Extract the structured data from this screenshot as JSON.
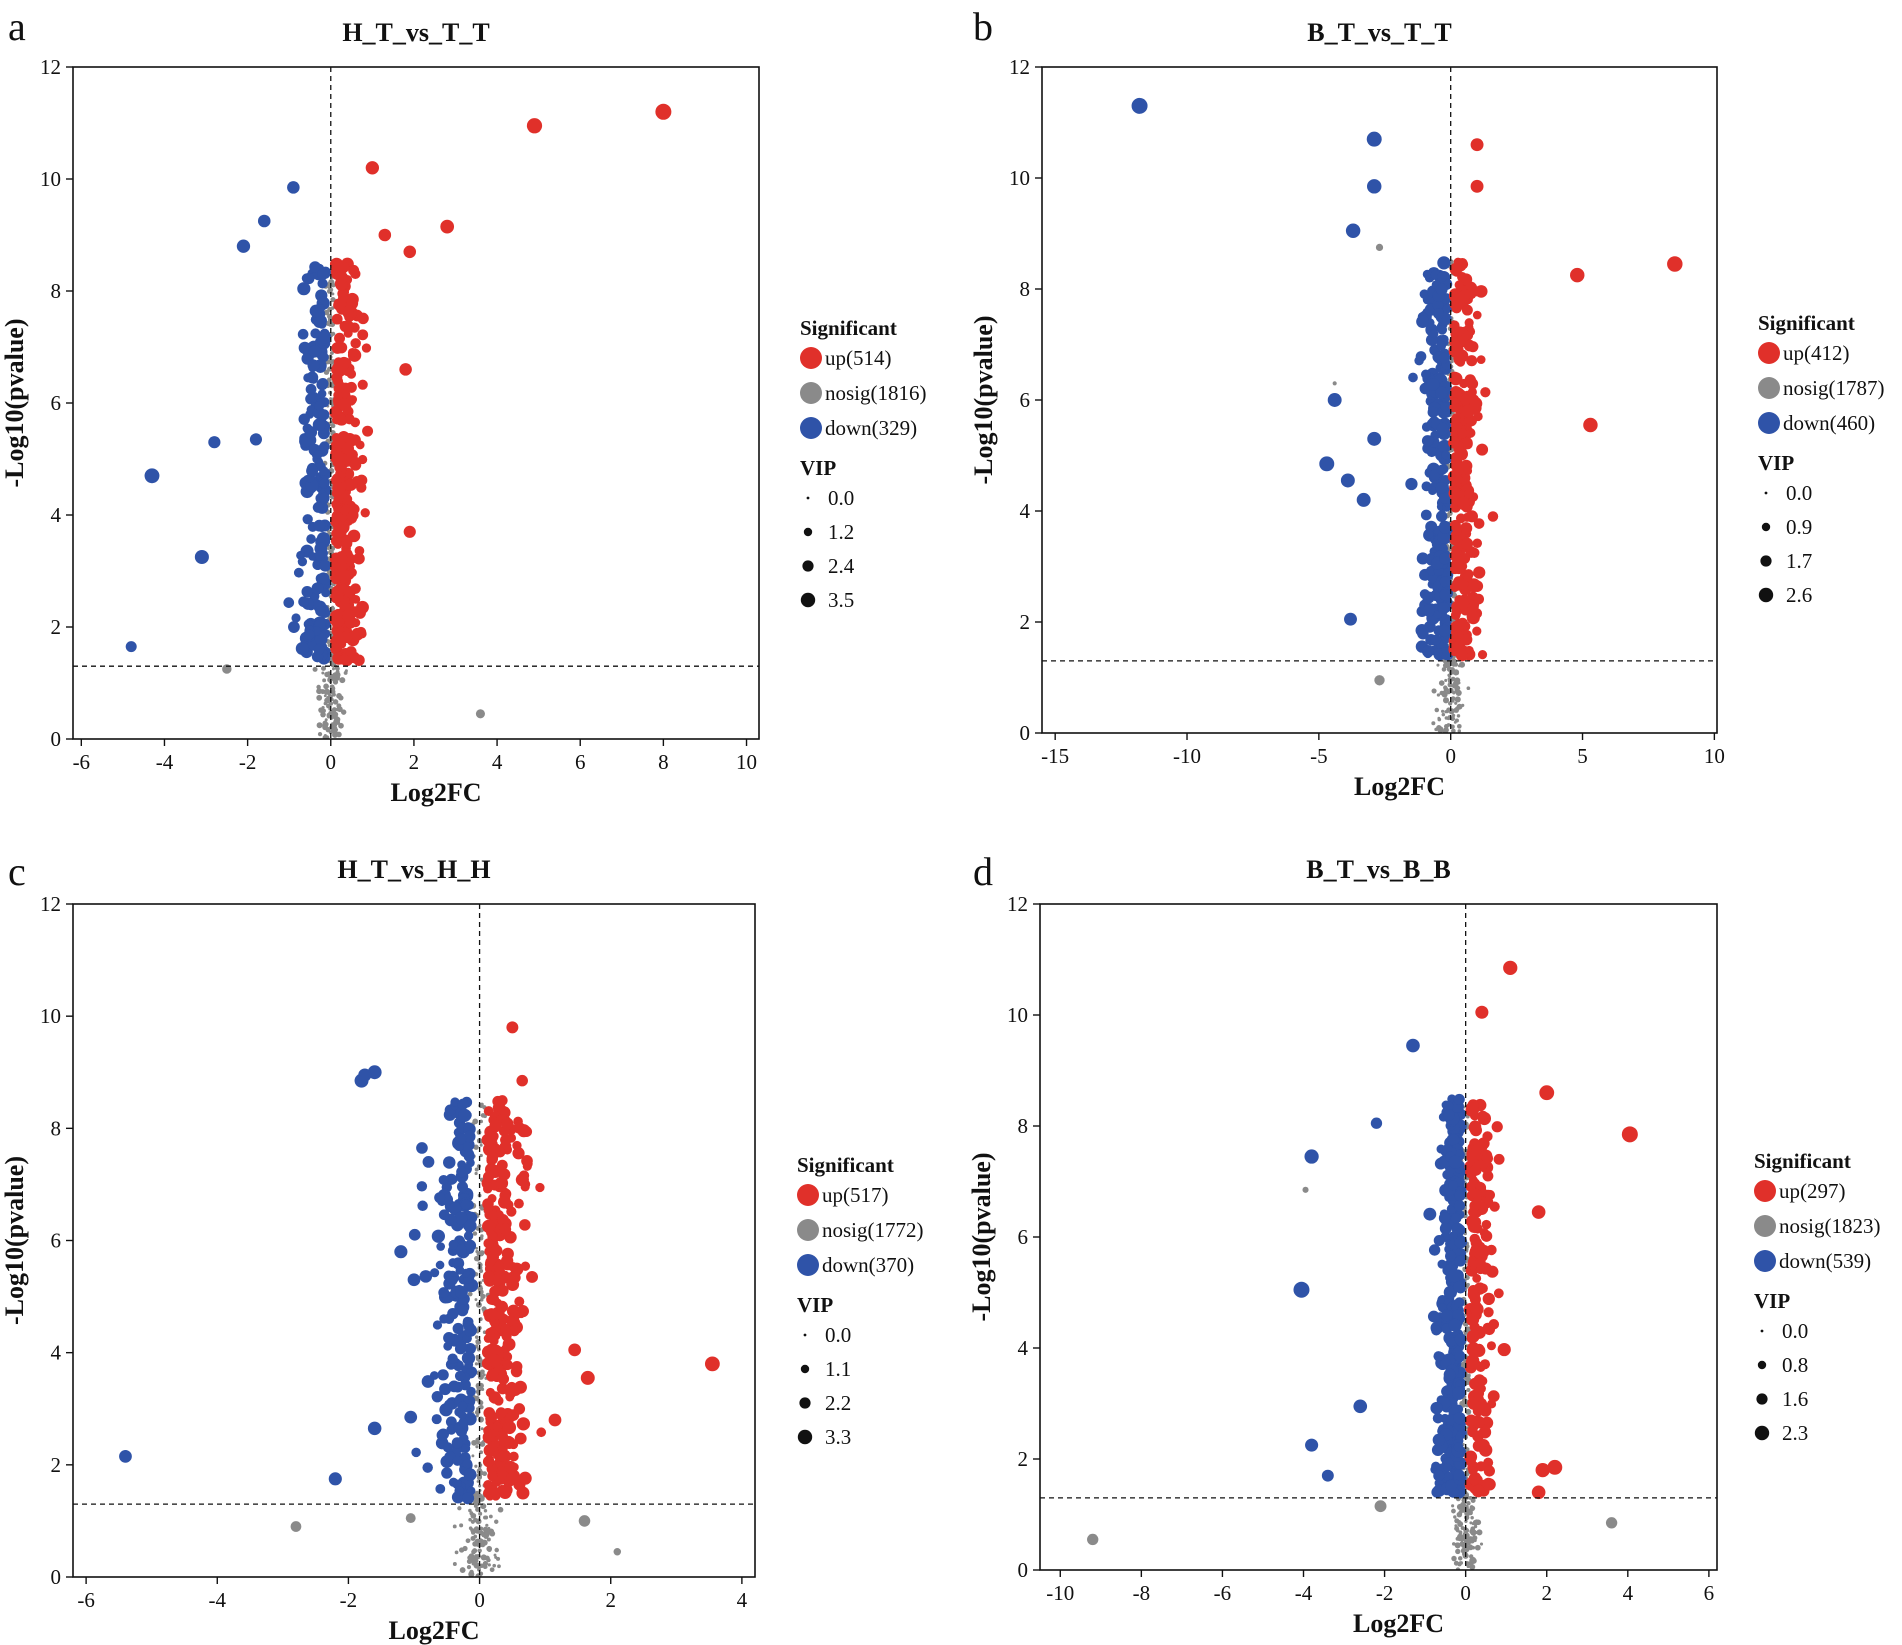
{
  "colors": {
    "up": "#e0302a",
    "nosig": "#8a8a8a",
    "down": "#2f53a8"
  },
  "chart_data": [
    {
      "type": "scatter",
      "panel_label": "a",
      "title": "H_T_vs_T_T",
      "xlabel": "Log2FC",
      "ylabel": "-Log10(pvalue)",
      "xlim": [
        -6.2,
        10.3
      ],
      "ylim": [
        0,
        12
      ],
      "xticks": [
        "-6",
        "-4",
        "-2",
        "0",
        "2",
        "4",
        "6",
        "8",
        "10"
      ],
      "yticks": [
        "0",
        "2",
        "4",
        "6",
        "8",
        "10",
        "12"
      ],
      "pvalue_threshold": 1.3,
      "fc_threshold": 0,
      "legend": {
        "significant_title": "Significant",
        "entries": [
          {
            "key": "up",
            "label": "up(514)"
          },
          {
            "key": "nosig",
            "label": "nosig(1816)"
          },
          {
            "key": "down",
            "label": "down(329)"
          }
        ],
        "vip_title": "VIP",
        "vip_values": [
          "0.0",
          "1.2",
          "2.4",
          "3.5"
        ]
      },
      "counts": {
        "up": 514,
        "nosig": 1816,
        "down": 329
      },
      "vip_max": 3.5,
      "highlights": [
        {
          "x": 8.0,
          "y": 11.2,
          "vip": 3.5,
          "g": "up"
        },
        {
          "x": 4.9,
          "y": 10.95,
          "vip": 3.3,
          "g": "up"
        },
        {
          "x": 2.8,
          "y": 9.15,
          "vip": 2.9,
          "g": "up"
        },
        {
          "x": 1.9,
          "y": 8.7,
          "vip": 2.6,
          "g": "up"
        },
        {
          "x": 1.8,
          "y": 6.6,
          "vip": 2.6,
          "g": "up"
        },
        {
          "x": 1.9,
          "y": 3.7,
          "vip": 2.5,
          "g": "up"
        },
        {
          "x": 1.0,
          "y": 10.2,
          "vip": 2.8,
          "g": "up"
        },
        {
          "x": 1.3,
          "y": 9.0,
          "vip": 2.6,
          "g": "up"
        },
        {
          "x": -0.9,
          "y": 9.85,
          "vip": 2.6,
          "g": "down"
        },
        {
          "x": -1.6,
          "y": 9.25,
          "vip": 2.6,
          "g": "down"
        },
        {
          "x": -2.1,
          "y": 8.8,
          "vip": 2.8,
          "g": "down"
        },
        {
          "x": -4.3,
          "y": 4.7,
          "vip": 3.2,
          "g": "down"
        },
        {
          "x": -3.1,
          "y": 3.25,
          "vip": 3.0,
          "g": "down"
        },
        {
          "x": -2.8,
          "y": 5.3,
          "vip": 2.5,
          "g": "down"
        },
        {
          "x": -1.8,
          "y": 5.35,
          "vip": 2.5,
          "g": "down"
        },
        {
          "x": -4.8,
          "y": 1.65,
          "vip": 2.2,
          "g": "down"
        },
        {
          "x": -2.5,
          "y": 1.25,
          "vip": 1.8,
          "g": "nosig"
        },
        {
          "x": 3.6,
          "y": 0.45,
          "vip": 1.7,
          "g": "nosig"
        }
      ]
    },
    {
      "type": "scatter",
      "panel_label": "b",
      "title": "B_T_vs_T_T",
      "xlabel": "Log2FC",
      "ylabel": "-Log10(pvalue)",
      "xlim": [
        -15.5,
        10.1
      ],
      "ylim": [
        0,
        12
      ],
      "xticks": [
        "-15",
        "-10",
        "-5",
        "0",
        "5",
        "10"
      ],
      "yticks": [
        "0",
        "2",
        "4",
        "6",
        "8",
        "10",
        "12"
      ],
      "pvalue_threshold": 1.3,
      "fc_threshold": 0,
      "legend": {
        "significant_title": "Significant",
        "entries": [
          {
            "key": "up",
            "label": "up(412)"
          },
          {
            "key": "nosig",
            "label": "nosig(1787)"
          },
          {
            "key": "down",
            "label": "down(460)"
          }
        ],
        "vip_title": "VIP",
        "vip_values": [
          "0.0",
          "0.9",
          "1.7",
          "2.6"
        ]
      },
      "counts": {
        "up": 412,
        "nosig": 1787,
        "down": 460
      },
      "vip_max": 2.6,
      "highlights": [
        {
          "x": -11.8,
          "y": 11.3,
          "vip": 2.6,
          "g": "down"
        },
        {
          "x": -2.9,
          "y": 10.7,
          "vip": 2.4,
          "g": "down"
        },
        {
          "x": -2.9,
          "y": 9.85,
          "vip": 2.3,
          "g": "down"
        },
        {
          "x": -3.7,
          "y": 9.05,
          "vip": 2.3,
          "g": "down"
        },
        {
          "x": -4.4,
          "y": 6.0,
          "vip": 2.2,
          "g": "down"
        },
        {
          "x": -2.9,
          "y": 5.3,
          "vip": 2.2,
          "g": "down"
        },
        {
          "x": -4.7,
          "y": 4.85,
          "vip": 2.4,
          "g": "down"
        },
        {
          "x": -3.9,
          "y": 4.55,
          "vip": 2.2,
          "g": "down"
        },
        {
          "x": -3.3,
          "y": 4.2,
          "vip": 2.2,
          "g": "down"
        },
        {
          "x": -3.8,
          "y": 2.05,
          "vip": 2.0,
          "g": "down"
        },
        {
          "x": 8.5,
          "y": 8.45,
          "vip": 2.5,
          "g": "up"
        },
        {
          "x": 4.8,
          "y": 8.25,
          "vip": 2.3,
          "g": "up"
        },
        {
          "x": 5.3,
          "y": 5.55,
          "vip": 2.3,
          "g": "up"
        },
        {
          "x": 1.0,
          "y": 10.6,
          "vip": 2.0,
          "g": "up"
        },
        {
          "x": 1.0,
          "y": 9.85,
          "vip": 2.0,
          "g": "up"
        },
        {
          "x": -2.7,
          "y": 8.75,
          "vip": 0.9,
          "g": "nosig"
        },
        {
          "x": -4.4,
          "y": 6.3,
          "vip": 0.3,
          "g": "nosig"
        },
        {
          "x": -2.7,
          "y": 0.95,
          "vip": 1.5,
          "g": "nosig"
        }
      ]
    },
    {
      "type": "scatter",
      "panel_label": "c",
      "title": "H_T_vs_H_H",
      "xlabel": "Log2FC",
      "ylabel": "-Log10(pvalue)",
      "xlim": [
        -6.2,
        4.2
      ],
      "ylim": [
        0,
        12
      ],
      "xticks": [
        "-6",
        "-4",
        "-2",
        "0",
        "2",
        "4"
      ],
      "yticks": [
        "0",
        "2",
        "4",
        "6",
        "8",
        "10",
        "12"
      ],
      "pvalue_threshold": 1.3,
      "fc_threshold": 0,
      "legend": {
        "significant_title": "Significant",
        "entries": [
          {
            "key": "up",
            "label": "up(517)"
          },
          {
            "key": "nosig",
            "label": "nosig(1772)"
          },
          {
            "key": "down",
            "label": "down(370)"
          }
        ],
        "vip_title": "VIP",
        "vip_values": [
          "0.0",
          "1.1",
          "2.2",
          "3.3"
        ]
      },
      "counts": {
        "up": 517,
        "nosig": 1772,
        "down": 370
      },
      "vip_max": 3.3,
      "highlights": [
        {
          "x": 3.55,
          "y": 3.8,
          "vip": 3.0,
          "g": "up"
        },
        {
          "x": 1.65,
          "y": 3.55,
          "vip": 2.8,
          "g": "up"
        },
        {
          "x": 1.45,
          "y": 4.05,
          "vip": 2.5,
          "g": "up"
        },
        {
          "x": 1.15,
          "y": 2.8,
          "vip": 2.5,
          "g": "up"
        },
        {
          "x": 0.5,
          "y": 9.8,
          "vip": 2.3,
          "g": "up"
        },
        {
          "x": 0.65,
          "y": 8.85,
          "vip": 2.2,
          "g": "up"
        },
        {
          "x": 0.8,
          "y": 5.35,
          "vip": 2.3,
          "g": "up"
        },
        {
          "x": -1.6,
          "y": 9.0,
          "vip": 2.8,
          "g": "down"
        },
        {
          "x": -1.8,
          "y": 8.85,
          "vip": 2.8,
          "g": "down"
        },
        {
          "x": -1.75,
          "y": 8.95,
          "vip": 2.6,
          "g": "down"
        },
        {
          "x": -1.2,
          "y": 5.8,
          "vip": 2.6,
          "g": "down"
        },
        {
          "x": -1.0,
          "y": 5.3,
          "vip": 2.5,
          "g": "down"
        },
        {
          "x": -1.6,
          "y": 2.65,
          "vip": 2.7,
          "g": "down"
        },
        {
          "x": -1.05,
          "y": 2.85,
          "vip": 2.5,
          "g": "down"
        },
        {
          "x": -5.4,
          "y": 2.15,
          "vip": 2.5,
          "g": "down"
        },
        {
          "x": -2.2,
          "y": 1.75,
          "vip": 2.6,
          "g": "down"
        },
        {
          "x": -2.8,
          "y": 0.9,
          "vip": 2.0,
          "g": "nosig"
        },
        {
          "x": -1.05,
          "y": 1.05,
          "vip": 1.8,
          "g": "nosig"
        },
        {
          "x": 1.6,
          "y": 1.0,
          "vip": 2.2,
          "g": "nosig"
        },
        {
          "x": 2.1,
          "y": 0.45,
          "vip": 1.2,
          "g": "nosig"
        }
      ]
    },
    {
      "type": "scatter",
      "panel_label": "d",
      "title": "B_T_vs_B_B",
      "xlabel": "Log2FC",
      "ylabel": "-Log10(pvalue)",
      "xlim": [
        -10.5,
        6.2
      ],
      "ylim": [
        0,
        12
      ],
      "xticks": [
        "-10",
        "-8",
        "-6",
        "-4",
        "-2",
        "0",
        "2",
        "4",
        "6"
      ],
      "yticks": [
        "0",
        "2",
        "4",
        "6",
        "8",
        "10",
        "12"
      ],
      "pvalue_threshold": 1.3,
      "fc_threshold": 0,
      "legend": {
        "significant_title": "Significant",
        "entries": [
          {
            "key": "up",
            "label": "up(297)"
          },
          {
            "key": "nosig",
            "label": "nosig(1823)"
          },
          {
            "key": "down",
            "label": "down(539)"
          }
        ],
        "vip_title": "VIP",
        "vip_values": [
          "0.0",
          "0.8",
          "1.6",
          "2.3"
        ]
      },
      "counts": {
        "up": 297,
        "nosig": 1823,
        "down": 539
      },
      "vip_max": 2.3,
      "highlights": [
        {
          "x": 4.05,
          "y": 7.85,
          "vip": 2.3,
          "g": "up"
        },
        {
          "x": 2.0,
          "y": 8.6,
          "vip": 2.1,
          "g": "up"
        },
        {
          "x": 1.1,
          "y": 10.85,
          "vip": 2.0,
          "g": "up"
        },
        {
          "x": 0.4,
          "y": 10.05,
          "vip": 1.8,
          "g": "up"
        },
        {
          "x": 1.8,
          "y": 6.45,
          "vip": 1.9,
          "g": "up"
        },
        {
          "x": 1.9,
          "y": 1.8,
          "vip": 2.0,
          "g": "up"
        },
        {
          "x": 2.2,
          "y": 1.85,
          "vip": 2.1,
          "g": "up"
        },
        {
          "x": 1.8,
          "y": 1.4,
          "vip": 1.9,
          "g": "up"
        },
        {
          "x": -4.05,
          "y": 5.05,
          "vip": 2.3,
          "g": "down"
        },
        {
          "x": -3.8,
          "y": 7.45,
          "vip": 2.0,
          "g": "down"
        },
        {
          "x": -2.2,
          "y": 8.05,
          "vip": 1.5,
          "g": "down"
        },
        {
          "x": -1.3,
          "y": 9.45,
          "vip": 1.9,
          "g": "down"
        },
        {
          "x": -3.8,
          "y": 2.25,
          "vip": 1.8,
          "g": "down"
        },
        {
          "x": -2.6,
          "y": 2.95,
          "vip": 1.9,
          "g": "down"
        },
        {
          "x": -3.4,
          "y": 1.7,
          "vip": 1.6,
          "g": "down"
        },
        {
          "x": -9.2,
          "y": 0.55,
          "vip": 1.5,
          "g": "nosig"
        },
        {
          "x": 3.6,
          "y": 0.85,
          "vip": 1.5,
          "g": "nosig"
        },
        {
          "x": -3.95,
          "y": 6.85,
          "vip": 0.6,
          "g": "nosig"
        },
        {
          "x": -2.1,
          "y": 1.15,
          "vip": 1.6,
          "g": "nosig"
        }
      ]
    }
  ]
}
